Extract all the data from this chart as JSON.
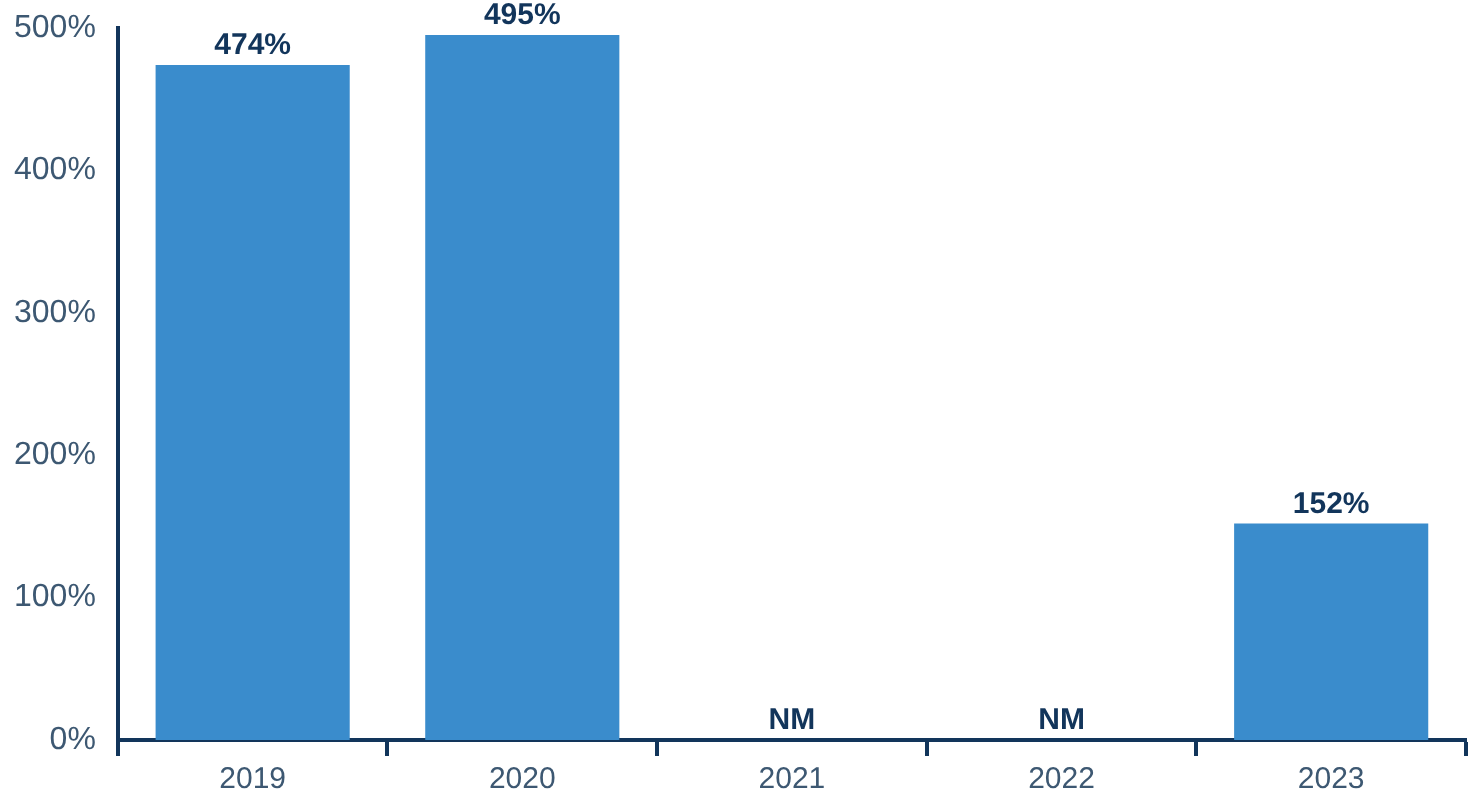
{
  "chart_data": {
    "type": "bar",
    "categories": [
      "2019",
      "2020",
      "2021",
      "2022",
      "2023"
    ],
    "values": [
      474,
      495,
      null,
      null,
      152
    ],
    "value_labels": [
      "474%",
      "495%",
      "NM",
      "NM",
      "152%"
    ],
    "color": "#3a8ccc",
    "ylim": [
      0,
      500
    ],
    "yticks": [
      {
        "value": 0,
        "label": "0%"
      },
      {
        "value": 100,
        "label": "100%"
      },
      {
        "value": 200,
        "label": "200%"
      },
      {
        "value": 300,
        "label": "300%"
      },
      {
        "value": 400,
        "label": "400%"
      },
      {
        "value": 500,
        "label": "500%"
      }
    ],
    "grid": false,
    "legend": false
  }
}
